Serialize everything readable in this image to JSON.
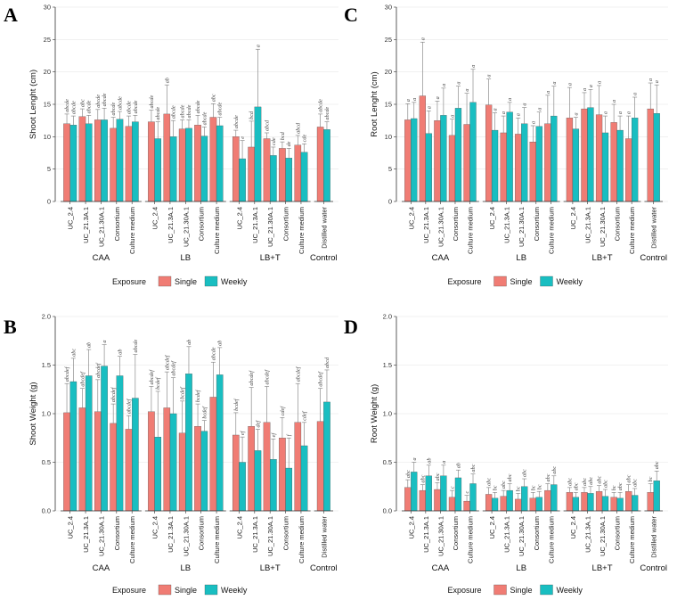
{
  "colors": {
    "single": "#F07C74",
    "weekly": "#19BEC1",
    "bar_stroke": "#444444"
  },
  "legend": {
    "title": "Exposure",
    "single": "Single",
    "weekly": "Weekly"
  },
  "chart_data": [
    {
      "panel": "A",
      "type": "bar",
      "ylabel": "Shoot Lenght (cm)",
      "ylim": [
        0,
        30
      ],
      "yticks": [
        "0",
        "5",
        "10",
        "15",
        "20",
        "25",
        "30"
      ],
      "ytick_values": [
        0,
        5,
        10,
        15,
        20,
        25,
        30
      ],
      "groups": [
        "CAA",
        "LB",
        "LB+T",
        "Control"
      ],
      "categories": [
        [
          "UC_2.4",
          "UC_21.3A.1",
          "UC_21.30A.1",
          "Consortium",
          "Culture medium"
        ],
        [
          "UC_2.4",
          "UC_21.3A.1",
          "UC_21.30A.1",
          "Consortium",
          "Culture medium"
        ],
        [
          "UC_2.4",
          "UC_21.3A.1",
          "UC_21.30A.1",
          "Consortium",
          "Culture medium"
        ],
        [
          "Distilled water"
        ]
      ],
      "series": [
        {
          "name": "Single",
          "values": [
            [
              12.0,
              13.1,
              12.6,
              11.3,
              11.6
            ],
            [
              12.3,
              13.5,
              11.2,
              11.8,
              13.0
            ],
            [
              10.0,
              8.4,
              9.7,
              8.2,
              8.7
            ],
            [
              11.5
            ]
          ],
          "errors": [
            [
              1.5,
              1.2,
              1.6,
              1.7,
              1.6
            ],
            [
              1.8,
              4.5,
              1.4,
              1.5,
              2.1
            ],
            [
              1.0,
              4.0,
              0.9,
              1.0,
              1.5
            ],
            [
              2.0
            ]
          ],
          "labels": [
            [
              "abcde",
              "abc",
              "abcde",
              "abcde",
              "abcde"
            ],
            [
              "abcde",
              "ab",
              "abcde",
              "abcde",
              "abc"
            ],
            [
              "abcde",
              "bcd",
              "abcd",
              "bcd",
              "abcd"
            ],
            [
              "abcde"
            ]
          ]
        },
        {
          "name": "Weekly",
          "values": [
            [
              11.8,
              12.0,
              12.6,
              12.7,
              12.3
            ],
            [
              9.7,
              10.0,
              11.3,
              10.1,
              11.7
            ],
            [
              6.6,
              14.6,
              7.1,
              6.7,
              7.6
            ],
            [
              11.1
            ]
          ],
          "errors": [
            [
              1.4,
              1.3,
              1.8,
              1.2,
              1.0
            ],
            [
              2.6,
              2.5,
              1.3,
              1.4,
              1.3
            ],
            [
              2.8,
              8.9,
              1.3,
              1.5,
              1.3
            ],
            [
              1.2
            ]
          ],
          "labels": [
            [
              "abcde",
              "abcde",
              "abcde",
              "abcde",
              "abcde"
            ],
            [
              "abcde",
              "abcde",
              "abcde",
              "abcde",
              "abcde"
            ],
            [
              "e",
              "a",
              "cde",
              "de",
              "cde"
            ],
            [
              "abcde"
            ]
          ]
        }
      ]
    },
    {
      "panel": "C",
      "type": "bar",
      "ylabel": "Root Lenght (cm)",
      "ylim": [
        0,
        30
      ],
      "yticks": [
        "0",
        "5",
        "10",
        "15",
        "20",
        "25",
        "30"
      ],
      "ytick_values": [
        0,
        5,
        10,
        15,
        20,
        25,
        30
      ],
      "groups": [
        "CAA",
        "LB",
        "LB+T",
        "Control"
      ],
      "categories": [
        [
          "UC_2.4",
          "UC_21.3A.1",
          "UC_21.30A.1",
          "Consortium",
          "Culture medium"
        ],
        [
          "UC_2.4",
          "UC_21.3A.1",
          "UC_21.30A.1",
          "Consortium",
          "Culture medium"
        ],
        [
          "UC_2.4",
          "UC_21.3A.1",
          "UC_21.30A.1",
          "Consortium",
          "Culture medium"
        ],
        [
          "Distilled water"
        ]
      ],
      "series": [
        {
          "name": "Single",
          "values": [
            [
              12.6,
              16.3,
              12.5,
              10.2,
              11.9
            ],
            [
              14.9,
              10.6,
              10.4,
              9.2,
              12.0
            ],
            [
              12.9,
              14.3,
              13.4,
              12.2,
              9.7
            ],
            [
              14.3
            ]
          ],
          "errors": [
            [
              2.5,
              8.3,
              3.0,
              2.5,
              4.8
            ],
            [
              4.0,
              2.6,
              2.5,
              2.5,
              4.4
            ],
            [
              4.7,
              2.5,
              4.5,
              2.8,
              3.5
            ],
            [
              4.0
            ]
          ],
          "labels": [
            [
              "a",
              "a",
              "a",
              "a",
              "a"
            ],
            [
              "a",
              "a",
              "a",
              "a",
              "a"
            ],
            [
              "a",
              "a",
              "a",
              "a",
              "a"
            ],
            [
              "a"
            ]
          ]
        },
        {
          "name": "Weekly",
          "values": [
            [
              12.8,
              10.5,
              13.3,
              14.4,
              15.3
            ],
            [
              11.0,
              13.8,
              12.0,
              11.6,
              13.2
            ],
            [
              11.2,
              14.5,
              10.6,
              11.0,
              12.9
            ],
            [
              13.6
            ]
          ],
          "errors": [
            [
              2.5,
              3.5,
              4.2,
              3.4,
              5.1
            ],
            [
              2.7,
              1.5,
              2.5,
              2.2,
              4.6
            ],
            [
              1.8,
              2.8,
              2.6,
              2.2,
              3.2
            ],
            [
              4.4
            ]
          ],
          "labels": [
            [
              "a",
              "a",
              "a",
              "a",
              "a"
            ],
            [
              "a",
              "a",
              "a",
              "a",
              "a"
            ],
            [
              "a",
              "a",
              "a",
              "a",
              "a"
            ],
            [
              "a"
            ]
          ]
        }
      ]
    },
    {
      "panel": "B",
      "type": "bar",
      "ylabel": "Shoot Weight (g)",
      "ylim": [
        0,
        2.0
      ],
      "yticks": [
        "0.0",
        "0.5",
        "1.0",
        "1.5",
        "2.0"
      ],
      "ytick_values": [
        0,
        0.5,
        1.0,
        1.5,
        2.0
      ],
      "groups": [
        "CAA",
        "LB",
        "LB+T",
        "Control"
      ],
      "categories": [
        [
          "UC_2.4",
          "UC_21.3A.1",
          "UC_21.30A.1",
          "Consortium",
          "Culture medium"
        ],
        [
          "UC_2.4",
          "UC_21.3A.1",
          "UC_21.30A.1",
          "Consortium",
          "Culture medium"
        ],
        [
          "UC_2.4",
          "UC_21.3A.1",
          "UC_21.30A.1",
          "Consortium",
          "Culture medium"
        ],
        [
          "Distilled water"
        ]
      ],
      "series": [
        {
          "name": "Single",
          "values": [
            [
              1.01,
              1.06,
              1.02,
              0.9,
              0.84
            ],
            [
              1.02,
              1.06,
              0.8,
              0.87,
              1.17
            ],
            [
              0.78,
              0.87,
              0.91,
              0.75,
              0.91
            ],
            [
              0.92
            ]
          ],
          "errors": [
            [
              0.3,
              0.2,
              0.33,
              0.2,
              0.14
            ],
            [
              0.26,
              0.37,
              0.33,
              0.23,
              0.36
            ],
            [
              0.23,
              0.4,
              0.37,
              0.21,
              0.4
            ],
            [
              0.34
            ]
          ],
          "labels": [
            [
              "abcdef",
              "abcdef",
              "abcdef",
              "abcdef",
              "abcdef"
            ],
            [
              "abcdef",
              "abcdef",
              "bcdef",
              "bcdef",
              "abcde"
            ],
            [
              "bcdef",
              "abcdef",
              "abcdef",
              "cdef",
              "abcdef"
            ],
            [
              "abcdef"
            ]
          ]
        },
        {
          "name": "Weekly",
          "values": [
            [
              1.33,
              1.39,
              1.49,
              1.39,
              1.16
            ],
            [
              0.76,
              1.0,
              1.41,
              0.82,
              1.4
            ],
            [
              0.5,
              0.62,
              0.53,
              0.44,
              0.67
            ],
            [
              1.12
            ]
          ],
          "errors": [
            [
              0.24,
              0.27,
              0.22,
              0.2,
              0.45
            ],
            [
              0.47,
              0.37,
              0.28,
              0.11,
              0.28
            ],
            [
              0.26,
              0.22,
              0.21,
              0.31,
              0.24
            ],
            [
              0.33
            ]
          ],
          "labels": [
            [
              "abc",
              "ab",
              "a",
              "ab",
              "abcde"
            ],
            [
              "bcdef",
              "abcdef",
              "ab",
              "bcdef",
              "ab"
            ],
            [
              "ef",
              "def",
              "ef",
              "f",
              "cdef"
            ],
            [
              "abcd"
            ]
          ]
        }
      ]
    },
    {
      "panel": "D",
      "type": "bar",
      "ylabel": "Root Weight (g)",
      "ylim": [
        0,
        2.0
      ],
      "yticks": [
        "0.0",
        "0.5",
        "1.0",
        "1.5",
        "2.0"
      ],
      "ytick_values": [
        0,
        0.5,
        1.0,
        1.5,
        2.0
      ],
      "groups": [
        "CAA",
        "LB",
        "LB+T",
        "Control"
      ],
      "categories": [
        [
          "UC_2.4",
          "UC_21.3A.1",
          "UC_21.30A.1",
          "Consortium",
          "Culture medium"
        ],
        [
          "UC_2.4",
          "UC_21.3A.1",
          "UC_21.30A.1",
          "Consortium",
          "Culture medium"
        ],
        [
          "UC_2.4",
          "UC_21.3A.1",
          "UC_21.30A.1",
          "Consortium",
          "Culture medium"
        ],
        [
          "Distilled water"
        ]
      ],
      "series": [
        {
          "name": "Single",
          "values": [
            [
              0.24,
              0.21,
              0.22,
              0.14,
              0.1
            ],
            [
              0.17,
              0.15,
              0.12,
              0.13,
              0.21
            ],
            [
              0.19,
              0.19,
              0.2,
              0.14,
              0.2
            ],
            [
              0.19
            ]
          ],
          "errors": [
            [
              0.08,
              0.06,
              0.07,
              0.07,
              0.06
            ],
            [
              0.07,
              0.06,
              0.06,
              0.06,
              0.07
            ],
            [
              0.05,
              0.05,
              0.06,
              0.05,
              0.07
            ],
            [
              0.09
            ]
          ],
          "labels": [
            [
              "abc",
              "abc",
              "abc",
              "c",
              "c"
            ],
            [
              "abc",
              "abc",
              "bc",
              "bc",
              "abc"
            ],
            [
              "abc",
              "abc",
              "abc",
              "bc",
              "abc"
            ],
            [
              "bc"
            ]
          ]
        },
        {
          "name": "Weekly",
          "values": [
            [
              0.4,
              0.36,
              0.36,
              0.34,
              0.28
            ],
            [
              0.13,
              0.21,
              0.25,
              0.14,
              0.27
            ],
            [
              0.14,
              0.18,
              0.15,
              0.13,
              0.16
            ],
            [
              0.31
            ]
          ],
          "errors": [
            [
              0.1,
              0.11,
              0.11,
              0.08,
              0.1
            ],
            [
              0.06,
              0.07,
              0.08,
              0.06,
              0.09
            ],
            [
              0.05,
              0.07,
              0.07,
              0.06,
              0.07
            ],
            [
              0.1
            ]
          ],
          "labels": [
            [
              "a",
              "ab",
              "a",
              "ab",
              "abc"
            ],
            [
              "bc",
              "abc",
              "abc",
              "bc",
              "abc"
            ],
            [
              "abc",
              "abc",
              "abc",
              "abc",
              "abc"
            ],
            [
              "abc"
            ]
          ]
        }
      ]
    }
  ]
}
